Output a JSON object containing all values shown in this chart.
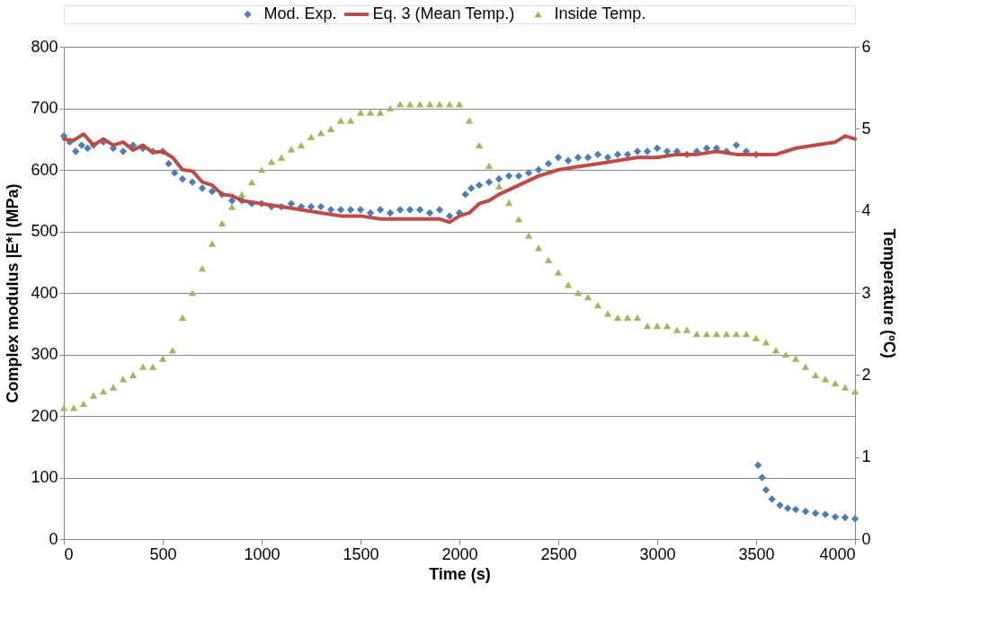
{
  "chart_data": {
    "type": "scatter",
    "xlabel": "Time (s)",
    "ylabel": "Complex modulus |E*| (MPa)",
    "y2label": "Temperature (ºC)",
    "xlim": [
      0,
      4000
    ],
    "xticks": [
      0,
      500,
      1000,
      1500,
      2000,
      2500,
      3000,
      3500,
      4000
    ],
    "ylim": [
      0,
      800
    ],
    "yticks": [
      0,
      100,
      200,
      300,
      400,
      500,
      600,
      700,
      800
    ],
    "y2lim": [
      0,
      6
    ],
    "y2ticks": [
      0,
      1,
      2,
      3,
      4,
      5,
      6
    ],
    "grid": "y",
    "legend": "top",
    "series": [
      {
        "name": "Mod. Exp.",
        "color": "#4a7ebb",
        "marker": "diamond",
        "x": [
          0,
          30,
          60,
          90,
          120,
          150,
          200,
          250,
          300,
          350,
          400,
          450,
          500,
          530,
          560,
          600,
          650,
          700,
          750,
          800,
          850,
          900,
          950,
          1000,
          1050,
          1100,
          1150,
          1200,
          1250,
          1300,
          1350,
          1400,
          1450,
          1500,
          1550,
          1600,
          1650,
          1700,
          1750,
          1800,
          1850,
          1900,
          1950,
          2000,
          2030,
          2060,
          2100,
          2150,
          2200,
          2250,
          2300,
          2350,
          2400,
          2450,
          2500,
          2550,
          2600,
          2650,
          2700,
          2750,
          2800,
          2850,
          2900,
          2950,
          3000,
          3050,
          3100,
          3150,
          3200,
          3250,
          3300,
          3350,
          3400,
          3450,
          3500,
          3510,
          3530,
          3550,
          3580,
          3620,
          3660,
          3700,
          3750,
          3800,
          3850,
          3900,
          3950,
          4000
        ],
        "values": [
          655,
          645,
          630,
          640,
          635,
          640,
          645,
          635,
          630,
          640,
          635,
          630,
          630,
          610,
          595,
          585,
          580,
          570,
          565,
          560,
          550,
          550,
          545,
          545,
          540,
          540,
          545,
          540,
          540,
          540,
          535,
          535,
          535,
          535,
          530,
          535,
          530,
          535,
          535,
          535,
          530,
          535,
          525,
          530,
          560,
          570,
          575,
          580,
          585,
          590,
          590,
          595,
          600,
          610,
          620,
          615,
          620,
          620,
          625,
          620,
          625,
          625,
          630,
          630,
          635,
          630,
          630,
          625,
          630,
          635,
          635,
          630,
          640,
          630,
          625,
          120,
          100,
          80,
          65,
          55,
          50,
          48,
          45,
          42,
          40,
          36,
          35,
          33
        ]
      },
      {
        "name": "Eq. 3 (Mean Temp.)",
        "color": "#be4b48",
        "type": "line",
        "x": [
          0,
          50,
          100,
          150,
          200,
          250,
          300,
          350,
          400,
          450,
          500,
          550,
          600,
          650,
          700,
          750,
          800,
          850,
          900,
          1000,
          1100,
          1200,
          1300,
          1400,
          1500,
          1600,
          1700,
          1800,
          1900,
          1950,
          2000,
          2050,
          2100,
          2150,
          2200,
          2300,
          2400,
          2500,
          2600,
          2700,
          2800,
          2900,
          3000,
          3100,
          3200,
          3300,
          3400,
          3500,
          3600,
          3700,
          3800,
          3900,
          3950,
          4000
        ],
        "values": [
          650,
          648,
          658,
          640,
          650,
          640,
          645,
          632,
          640,
          628,
          630,
          620,
          600,
          598,
          580,
          575,
          560,
          558,
          550,
          545,
          540,
          535,
          530,
          525,
          525,
          520,
          520,
          520,
          520,
          515,
          525,
          530,
          545,
          550,
          560,
          575,
          590,
          600,
          605,
          610,
          615,
          620,
          620,
          625,
          625,
          630,
          625,
          625,
          625,
          635,
          640,
          645,
          655,
          650
        ]
      },
      {
        "name": "Inside Temp.",
        "color": "#9bbb59",
        "marker": "triangle",
        "axis": "y2",
        "x": [
          0,
          50,
          100,
          150,
          200,
          250,
          300,
          350,
          400,
          450,
          500,
          550,
          600,
          650,
          700,
          750,
          800,
          850,
          900,
          950,
          1000,
          1050,
          1100,
          1150,
          1200,
          1250,
          1300,
          1350,
          1400,
          1450,
          1500,
          1550,
          1600,
          1650,
          1700,
          1750,
          1800,
          1850,
          1900,
          1950,
          2000,
          2050,
          2100,
          2150,
          2200,
          2250,
          2300,
          2350,
          2400,
          2450,
          2500,
          2550,
          2600,
          2650,
          2700,
          2750,
          2800,
          2850,
          2900,
          2950,
          3000,
          3050,
          3100,
          3150,
          3200,
          3250,
          3300,
          3350,
          3400,
          3450,
          3500,
          3550,
          3600,
          3650,
          3700,
          3750,
          3800,
          3850,
          3900,
          3950,
          4000
        ],
        "values": [
          1.6,
          1.6,
          1.65,
          1.75,
          1.8,
          1.85,
          1.95,
          2.0,
          2.1,
          2.1,
          2.2,
          2.3,
          2.7,
          3.0,
          3.3,
          3.6,
          3.85,
          4.05,
          4.2,
          4.35,
          4.5,
          4.6,
          4.65,
          4.75,
          4.8,
          4.9,
          4.95,
          5.0,
          5.1,
          5.1,
          5.2,
          5.2,
          5.2,
          5.25,
          5.3,
          5.3,
          5.3,
          5.3,
          5.3,
          5.3,
          5.3,
          5.1,
          4.8,
          4.55,
          4.3,
          4.1,
          3.9,
          3.7,
          3.55,
          3.4,
          3.25,
          3.1,
          3.0,
          2.95,
          2.85,
          2.75,
          2.7,
          2.7,
          2.7,
          2.6,
          2.6,
          2.6,
          2.55,
          2.55,
          2.5,
          2.5,
          2.5,
          2.5,
          2.5,
          2.5,
          2.45,
          2.4,
          2.3,
          2.25,
          2.2,
          2.1,
          2.0,
          1.95,
          1.9,
          1.85,
          1.8
        ]
      }
    ]
  }
}
